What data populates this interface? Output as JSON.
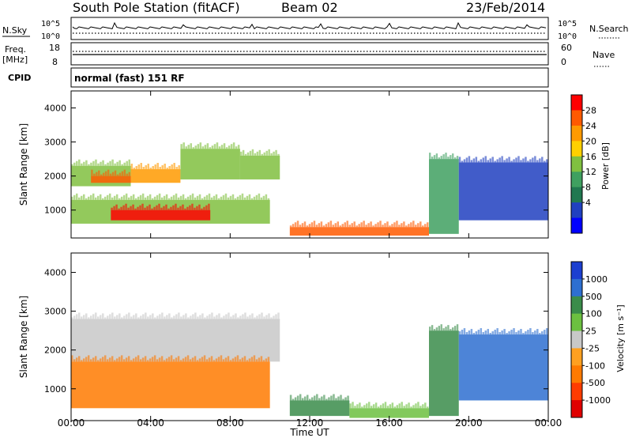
{
  "header": {
    "station": "South Pole Station (fitACF)",
    "beam": "Beam 02",
    "date": "23/Feb/2014"
  },
  "noise_panel": {
    "left_label": "N.Sky",
    "right_label": "N.Search",
    "left_ticks": [
      "10^5",
      "10^0"
    ],
    "right_ticks": [
      "10^5",
      "10^0"
    ]
  },
  "freq_panel": {
    "left_label_line1": "Freq.",
    "left_label_line2": "[MHz]",
    "right_label": "Nave",
    "left_ticks": [
      "18",
      "8"
    ],
    "right_ticks": [
      "60",
      "0"
    ]
  },
  "cpid_panel": {
    "label": "CPID",
    "text": "normal (fast) 151 RF"
  },
  "x_axis": {
    "label": "Time UT",
    "ticks": [
      "00:00",
      "04:00",
      "08:00",
      "12:00",
      "16:00",
      "20:00",
      "00:00"
    ]
  },
  "power_colorbar": {
    "label": "Power [dB]",
    "ticks": [
      "28",
      "24",
      "20",
      "16",
      "12",
      "8",
      "4"
    ],
    "colors": [
      "#ff0000",
      "#ff5a00",
      "#ff9a00",
      "#ffd000",
      "#80c040",
      "#3fa060",
      "#207850",
      "#2040c0",
      "#0000ff"
    ]
  },
  "velocity_colorbar": {
    "label": "Velocity [m s⁻¹]",
    "ticks": [
      "1000",
      "500",
      "100",
      "25",
      "-25",
      "-100",
      "-500",
      "-1000"
    ],
    "colors": [
      "#1c3fd0",
      "#2e6fd0",
      "#3a8c4a",
      "#6cc040",
      "#c8c8c8",
      "#ffa020",
      "#ff7a00",
      "#ff3c00",
      "#e00000"
    ]
  },
  "chart_data": [
    {
      "type": "heatmap",
      "title": "Power",
      "ylabel": "Slant Range [km]",
      "xlabel": "",
      "xlim": [
        0,
        24
      ],
      "ylim": [
        180,
        4500
      ],
      "y_ticks": [
        1000,
        2000,
        3000,
        4000
      ],
      "zlabel": "Power [dB]",
      "zlim": [
        0,
        30
      ],
      "bands": [
        {
          "t0": 0,
          "t1": 3,
          "r0": 1700,
          "r1": 2300,
          "level": 14
        },
        {
          "t0": 1,
          "t1": 3,
          "r0": 1800,
          "r1": 2000,
          "level": 26
        },
        {
          "t0": 3,
          "t1": 5.5,
          "r0": 1800,
          "r1": 2200,
          "level": 22
        },
        {
          "t0": 5.5,
          "t1": 8.5,
          "r0": 1900,
          "r1": 2800,
          "level": 16
        },
        {
          "t0": 8.5,
          "t1": 10.5,
          "r0": 1900,
          "r1": 2600,
          "level": 14
        },
        {
          "t0": 0,
          "t1": 10,
          "r0": 600,
          "r1": 1300,
          "level": 16
        },
        {
          "t0": 2,
          "t1": 7,
          "r0": 700,
          "r1": 1000,
          "level": 28
        },
        {
          "t0": 11,
          "t1": 18,
          "r0": 250,
          "r1": 500,
          "level": 26
        },
        {
          "t0": 18,
          "t1": 19.5,
          "r0": 300,
          "r1": 2500,
          "level": 12
        },
        {
          "t0": 19.5,
          "t1": 24,
          "r0": 700,
          "r1": 2400,
          "level": 6
        }
      ]
    },
    {
      "type": "heatmap",
      "title": "Velocity",
      "ylabel": "Slant Range [km]",
      "xlabel": "Time UT",
      "xlim": [
        0,
        24
      ],
      "ylim": [
        180,
        4500
      ],
      "y_ticks": [
        1000,
        2000,
        3000,
        4000
      ],
      "zlabel": "Velocity [m s⁻¹]",
      "zlim": [
        -1000,
        1000
      ],
      "bands": [
        {
          "t0": 0,
          "t1": 10.5,
          "r0": 1700,
          "r1": 2800,
          "level": 0
        },
        {
          "t0": 0,
          "t1": 10,
          "r0": 500,
          "r1": 1700,
          "level": -300
        },
        {
          "t0": 11,
          "t1": 14,
          "r0": 300,
          "r1": 700,
          "level": 200
        },
        {
          "t0": 14,
          "t1": 18,
          "r0": 250,
          "r1": 500,
          "level": 60
        },
        {
          "t0": 18,
          "t1": 19.5,
          "r0": 300,
          "r1": 2500,
          "level": 300
        },
        {
          "t0": 19.5,
          "t1": 24,
          "r0": 700,
          "r1": 2400,
          "level": 800
        }
      ]
    }
  ]
}
